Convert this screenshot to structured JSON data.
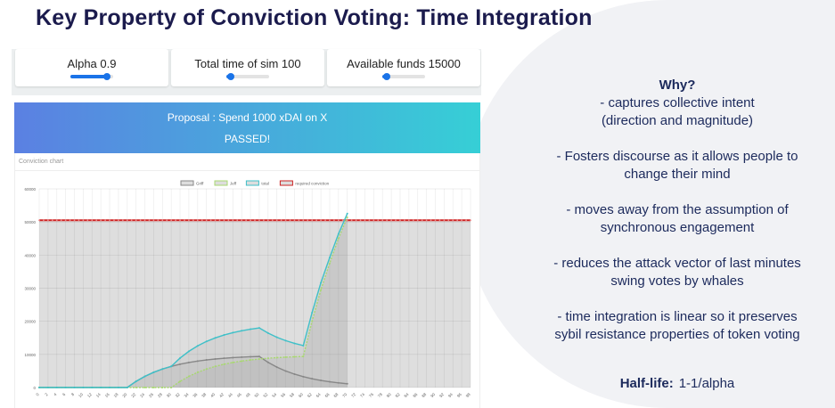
{
  "title": "Key Property of Conviction Voting: Time Integration",
  "controls": [
    {
      "label": "Alpha 0.9",
      "slider_fraction": 0.85
    },
    {
      "label": "Total time of sim 100",
      "slider_fraction": 0.1
    },
    {
      "label": "Available funds 15000",
      "slider_fraction": 0.1
    }
  ],
  "banner": {
    "proposal": "Proposal : Spend 1000 xDAI on X",
    "status": "PASSED!",
    "colors": [
      "#5b80e2",
      "#36cfd6"
    ]
  },
  "chart_card_title": "Conviction chart",
  "right_panel": {
    "heading": "Why?",
    "points": [
      [
        "- captures collective intent",
        "(direction and magnitude)"
      ],
      [
        "- Fosters discourse as it allows people to",
        "change their mind"
      ],
      [
        "- moves away from the assumption of",
        "synchronous engagement"
      ],
      [
        "- reduces the attack vector of last minutes",
        "swing votes by whales"
      ],
      [
        "- time integration is linear so it preserves",
        "sybil resistance properties of token voting"
      ]
    ],
    "half_life_label": "Half-life:",
    "half_life_value": "1-1/alpha"
  },
  "chart_data": {
    "type": "line",
    "title": "",
    "xlabel": "",
    "ylabel": "",
    "xlim": [
      0,
      98
    ],
    "ylim": [
      0,
      60000
    ],
    "yticks": [
      0,
      10000,
      20000,
      30000,
      40000,
      50000,
      60000
    ],
    "xticks_step": 2,
    "grid": true,
    "legend_placement": "top",
    "x": [
      0,
      2,
      4,
      6,
      8,
      10,
      12,
      14,
      16,
      18,
      20,
      22,
      24,
      26,
      28,
      30,
      32,
      34,
      36,
      38,
      40,
      42,
      44,
      46,
      48,
      50,
      52,
      54,
      56,
      58,
      60,
      62,
      64,
      66,
      68,
      70
    ],
    "series": [
      {
        "name": "Griff",
        "color": "#888888",
        "values": [
          0,
          0,
          0,
          0,
          0,
          0,
          0,
          0,
          0,
          0,
          0,
          1862,
          3370,
          4592,
          5581,
          6380,
          7032,
          7558,
          7984,
          8329,
          8608,
          8835,
          9018,
          9167,
          9287,
          9385,
          7602,
          6157,
          4987,
          4040,
          3272,
          2650,
          2147,
          1739,
          1409,
          1141
        ]
      },
      {
        "name": "Jeff",
        "color": "#a8d870",
        "values": [
          0,
          0,
          0,
          0,
          0,
          0,
          0,
          0,
          0,
          0,
          0,
          0,
          0,
          0,
          0,
          0,
          1862,
          3370,
          4592,
          5581,
          6380,
          7032,
          7558,
          7984,
          8329,
          8608,
          8835,
          9018,
          9167,
          9287,
          9385,
          20000,
          29500,
          37500,
          45000,
          51400
        ]
      },
      {
        "name": "total",
        "color": "#3fc0c8",
        "values": [
          0,
          0,
          0,
          0,
          0,
          0,
          0,
          0,
          0,
          0,
          0,
          1862,
          3370,
          4592,
          5581,
          6380,
          8894,
          10928,
          12576,
          13910,
          14988,
          15867,
          16576,
          17151,
          17616,
          17993,
          16437,
          15175,
          14154,
          13327,
          12657,
          22650,
          31647,
          39239,
          46409,
          52541
        ]
      },
      {
        "name": "required conviction",
        "color": "#cc2222",
        "constant": 50500
      }
    ]
  }
}
